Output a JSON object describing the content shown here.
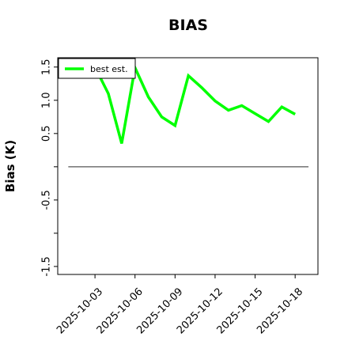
{
  "chart_data": {
    "type": "line",
    "title": "BIAS",
    "ylabel": "Bias (K)",
    "x": [
      "2025-10-03",
      "2025-10-04",
      "2025-10-05",
      "2025-10-06",
      "2025-10-07",
      "2025-10-08",
      "2025-10-09",
      "2025-10-10",
      "2025-10-11",
      "2025-10-12",
      "2025-10-13",
      "2025-10-14",
      "2025-10-15",
      "2025-10-16",
      "2025-10-17",
      "2025-10-18"
    ],
    "series": [
      {
        "name": "best est.",
        "color": "#00ff00",
        "values": [
          1.5,
          1.1,
          0.35,
          1.49,
          1.05,
          0.75,
          0.62,
          1.37,
          1.19,
          0.99,
          0.85,
          0.92,
          0.8,
          0.68,
          0.9,
          0.79
        ]
      }
    ],
    "hline": {
      "y": 0,
      "x": [
        "2025-10-01",
        "2025-10-19"
      ],
      "color": "#555555"
    },
    "xlim": [
      "2025-09-30T05:00",
      "2025-10-19T17:00"
    ],
    "xticks": [
      "2025-10-03",
      "2025-10-06",
      "2025-10-09",
      "2025-10-12",
      "2025-10-15",
      "2025-10-18"
    ],
    "ylim": [
      -1.62,
      1.64
    ],
    "yticks": [
      {
        "value": -1.5,
        "label": "-1.5"
      },
      {
        "value": -1.0,
        "label": null
      },
      {
        "value": -0.5,
        "label": "-0.5"
      },
      {
        "value": 0,
        "label": null
      },
      {
        "value": 0.5,
        "label": "0.5"
      },
      {
        "value": 1.0,
        "label": "1.0"
      },
      {
        "value": 1.5,
        "label": "1.5"
      }
    ],
    "legend": "upper left",
    "grid": false
  }
}
